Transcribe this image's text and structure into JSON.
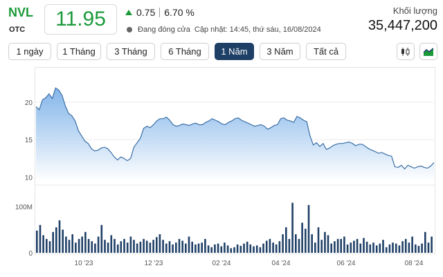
{
  "stock": {
    "ticker": "NVL",
    "exchange": "OTC",
    "price": "11.95",
    "change": "0.75",
    "change_pct": "6.70 %",
    "status": "Đang đóng cửa",
    "updated": "Cập nhật: 14:45, thứ sáu, 16/08/2024",
    "volume_label": "Khối lượng",
    "volume": "35,447,200",
    "color_up": "#1b9a3a"
  },
  "ranges": [
    {
      "label": "1 ngày",
      "active": false
    },
    {
      "label": "1 Tháng",
      "active": false
    },
    {
      "label": "3 Tháng",
      "active": false
    },
    {
      "label": "6 Tháng",
      "active": false
    },
    {
      "label": "1 Năm",
      "active": true
    },
    {
      "label": "3 Năm",
      "active": false
    },
    {
      "label": "Tất cả",
      "active": false
    }
  ],
  "chart_types": [
    "candlestick-icon",
    "area-chart-icon"
  ],
  "chart_data": {
    "type": "area",
    "price_y_ticks": [
      "20",
      "15",
      "10"
    ],
    "price_ylim": [
      9.5,
      24.5
    ],
    "volume_y_ticks": [
      "100M",
      "0"
    ],
    "volume_ylim": [
      0,
      140
    ],
    "x_ticks": [
      "10 '23",
      "12 '23",
      "02 '24",
      "04 '24",
      "06 '24",
      "08 '24"
    ],
    "price_series": [
      19.4,
      19.0,
      20.3,
      20.6,
      21.1,
      20.5,
      21.9,
      21.6,
      20.9,
      19.5,
      18.5,
      18.2,
      17.5,
      16.2,
      15.5,
      14.8,
      14.5,
      13.8,
      13.5,
      13.6,
      13.9,
      14.0,
      13.8,
      13.3,
      12.7,
      12.3,
      12.7,
      12.5,
      12.2,
      12.5,
      14.0,
      14.6,
      15.2,
      16.5,
      16.8,
      16.6,
      17.0,
      17.5,
      17.8,
      17.8,
      18.0,
      17.6,
      17.0,
      16.8,
      16.9,
      17.1,
      17.0,
      16.9,
      17.1,
      17.2,
      17.0,
      17.0,
      17.3,
      17.5,
      17.8,
      17.6,
      17.4,
      17.1,
      17.0,
      17.3,
      17.5,
      17.8,
      17.9,
      17.6,
      17.4,
      17.2,
      17.0,
      16.8,
      16.9,
      17.0,
      16.8,
      16.4,
      16.6,
      16.9,
      17.0,
      17.8,
      17.9,
      17.6,
      17.5,
      17.3,
      18.1,
      17.9,
      17.6,
      17.4,
      15.5,
      14.3,
      14.6,
      14.1,
      14.5,
      13.7,
      13.9,
      14.2,
      14.4,
      14.5,
      14.5,
      14.6,
      14.7,
      14.5,
      14.2,
      14.4,
      14.4,
      14.1,
      13.8,
      13.6,
      13.4,
      13.2,
      13.3,
      13.1,
      12.9,
      12.8,
      11.4,
      11.3,
      11.6,
      11.1,
      11.6,
      11.4,
      11.2,
      11.4,
      11.5,
      11.3,
      11.2,
      11.5,
      11.95
    ],
    "volume_series": [
      48,
      60,
      38,
      30,
      25,
      45,
      55,
      70,
      50,
      35,
      28,
      40,
      22,
      30,
      35,
      45,
      30,
      25,
      20,
      35,
      60,
      28,
      22,
      38,
      30,
      18,
      25,
      30,
      22,
      35,
      28,
      20,
      24,
      30,
      26,
      22,
      28,
      34,
      40,
      28,
      20,
      25,
      18,
      22,
      30,
      26,
      20,
      35,
      24,
      18,
      20,
      22,
      30,
      16,
      12,
      18,
      20,
      14,
      22,
      16,
      10,
      12,
      18,
      15,
      20,
      24,
      18,
      14,
      16,
      12,
      20,
      26,
      30,
      22,
      18,
      25,
      40,
      55,
      30,
      108,
      40,
      30,
      65,
      52,
      103,
      40,
      22,
      55,
      28,
      45,
      38,
      20,
      25,
      30,
      30,
      35,
      18,
      22,
      26,
      30,
      20,
      32,
      24,
      18,
      22,
      16,
      20,
      28,
      12,
      18,
      22,
      20,
      16,
      25,
      30,
      22,
      35,
      18,
      15,
      20,
      45,
      22,
      35
    ]
  }
}
